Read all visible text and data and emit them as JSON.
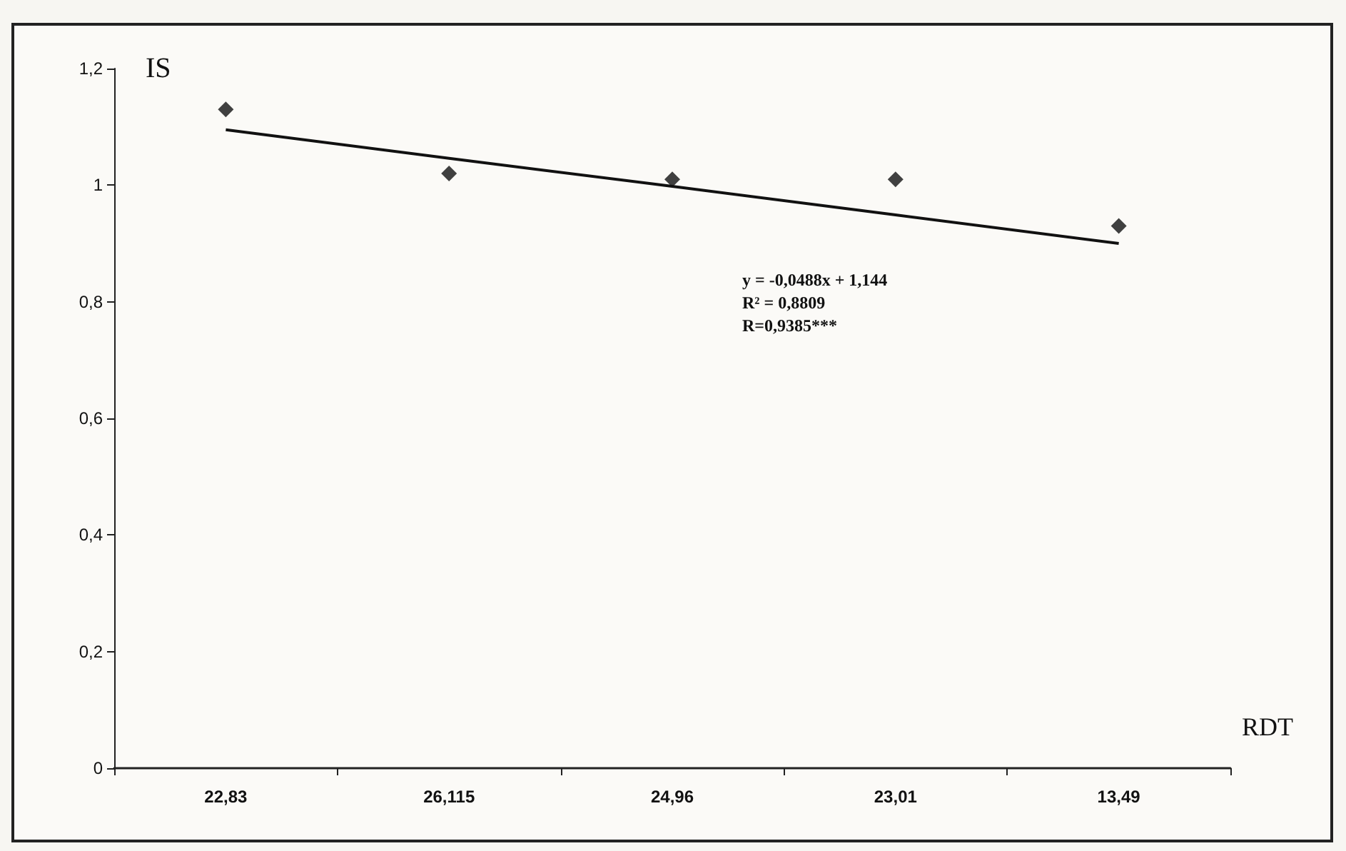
{
  "chart_data": {
    "type": "scatter",
    "ylabel": "IS",
    "xlabel": "RDT",
    "categories": [
      "22,83",
      "26,115",
      "24,96",
      "23,01",
      "13,49"
    ],
    "series": [
      {
        "color": "#111111",
        "marker": "diamond",
        "values": [
          1.13,
          1.02,
          1.01,
          1.01,
          0.93
        ]
      },
      {
        "type": "line",
        "color": "#111111",
        "marker": "none",
        "line_style": "solid",
        "values": [
          1.095,
          1.046,
          0.998,
          0.949,
          0.9
        ]
      }
    ],
    "ylim": [
      0,
      1.2
    ],
    "yticks": [
      0,
      {
        "value": 0.2,
        "label": "0,2"
      },
      {
        "value": 0.4,
        "label": "0,4"
      },
      {
        "value": 0.6,
        "label": "0,6"
      },
      {
        "value": 0.8,
        "label": "0,8"
      },
      1,
      {
        "value": 1.2,
        "label": "1,2"
      }
    ],
    "annotations": [
      "y = -0,0488x + 1,144",
      "R² = 0,8809",
      "R=0,9385***"
    ],
    "grid": false
  }
}
